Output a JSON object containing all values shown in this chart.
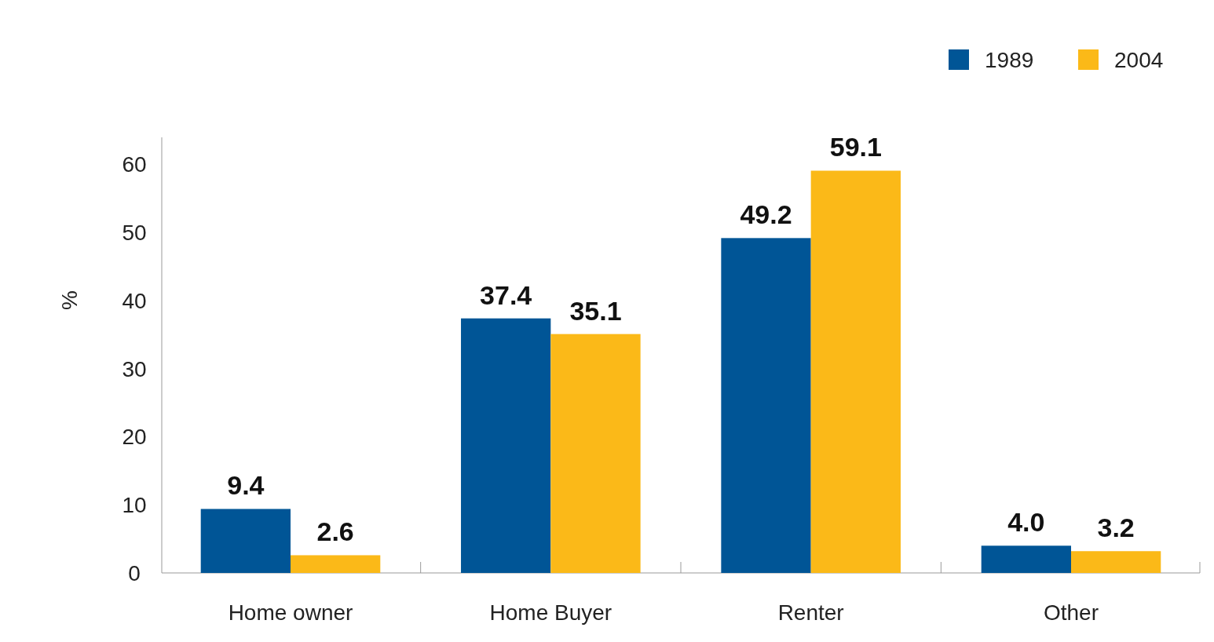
{
  "chart_data": {
    "type": "bar",
    "ylabel": "%",
    "categories": [
      "Home owner",
      "Home Buyer",
      "Renter",
      "Other"
    ],
    "series": [
      {
        "name": "1989",
        "color": "#005596",
        "values": [
          9.4,
          37.4,
          49.2,
          4.0
        ],
        "value_labels": [
          "9.4",
          "37.4",
          "49.2",
          "4.0"
        ]
      },
      {
        "name": "2004",
        "color": "#fbb918",
        "values": [
          2.6,
          35.1,
          59.1,
          3.2
        ],
        "value_labels": [
          "2.6",
          "35.1",
          "59.1",
          "3.2"
        ]
      }
    ],
    "ylim": [
      0,
      64
    ],
    "yticks": [
      0,
      10,
      20,
      30,
      40,
      50,
      60
    ],
    "legend": "top right"
  }
}
